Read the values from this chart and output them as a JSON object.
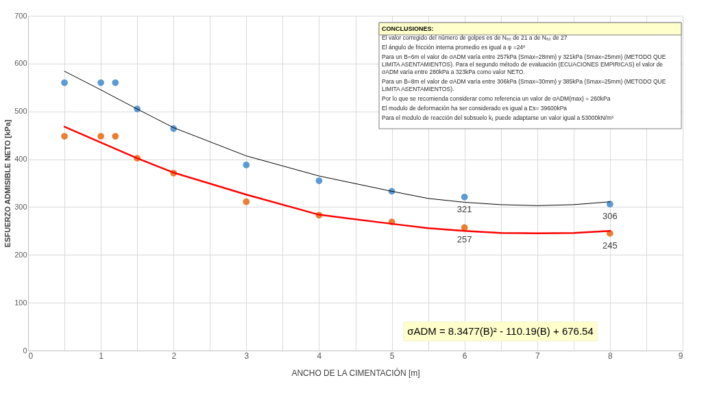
{
  "chart_data": {
    "type": "scatter",
    "xlabel": "ANCHO DE LA CIMENTACIÓN [m]",
    "ylabel": "ESFUERZO ADMISIBLE NETO [kPa]",
    "xlim": [
      0,
      9
    ],
    "xticks": [
      0,
      {
        "value": 0.5,
        "label": null
      },
      1,
      {
        "value": 1.5,
        "label": null
      },
      2,
      {
        "value": 2.5,
        "label": null
      },
      3,
      {
        "value": 3.5,
        "label": null
      },
      4,
      {
        "value": 4.5,
        "label": null
      },
      5,
      {
        "value": 5.5,
        "label": null
      },
      6,
      {
        "value": 6.5,
        "label": null
      },
      7,
      {
        "value": 7.5,
        "label": null
      },
      8,
      {
        "value": 8.5,
        "label": null
      },
      9
    ],
    "ylim": [
      0,
      700
    ],
    "yticks": [
      0,
      100,
      200,
      300,
      400,
      500,
      600,
      700
    ],
    "grid": true,
    "marker": "circle",
    "series": [
      {
        "color": "#5b9bd5",
        "x": [
          0.5,
          1,
          1.2,
          1.5,
          2,
          3,
          4,
          5,
          6,
          8
        ],
        "values": [
          560,
          560,
          560,
          505,
          464,
          388,
          355,
          333,
          321,
          306
        ],
        "value_labels": [
          null,
          null,
          null,
          null,
          null,
          null,
          null,
          null,
          "321",
          "306"
        ]
      },
      {
        "color": "#ed7d31",
        "x": [
          0.5,
          1,
          1.2,
          1.5,
          2,
          3,
          4,
          5,
          6,
          8
        ],
        "values": [
          448,
          448,
          448,
          402,
          371,
          311,
          283,
          269,
          257,
          245
        ],
        "value_labels": [
          null,
          null,
          null,
          null,
          null,
          null,
          null,
          null,
          "257",
          "245"
        ]
      },
      {
        "type": "line",
        "marker": "none",
        "color": "#000000",
        "x": [
          0.5,
          1,
          1.5,
          2,
          3,
          4,
          5,
          5.5,
          6,
          6.5,
          7,
          7.5,
          8
        ],
        "values": [
          584,
          545,
          505,
          466,
          407,
          365,
          333,
          318,
          310,
          305,
          303,
          305,
          311
        ]
      },
      {
        "type": "line",
        "marker": "none",
        "color": "#ff0000",
        "x": [
          0.5,
          1,
          1.5,
          2,
          3,
          4,
          5,
          5.5,
          6,
          6.5,
          7,
          7.5,
          8
        ],
        "values": [
          468,
          435,
          402,
          372,
          326,
          284,
          265,
          256,
          250,
          246,
          245,
          246,
          250
        ]
      }
    ],
    "annotations": [
      "CONCLUSIONES:",
      "El valor corregido del número de golpes es de N₆₀ de 21 a de N₆₀ de 27",
      "El ángulo de fricción interna promedio es igual a φ =24º",
      "Para un B=6m el valor de σADM varía entre 257kPa (Smax=28mm) y 321kPa (Smax=25mm) (METODO QUE LIMITA ASENTAMIENTOS). Para el segundo método de evaluación (ECUACIONES EMPIRICAS) el valor de σADM varía entre 280kPa a 323kPa como valor NETO.",
      "Para un B=8m el valor de σADM varía entre 306kPa (Smax=30mm) y 385kPa (Smax=25mm) (METODO QUE LIMITA ASENTAMIENTOS).",
      "Por lo que se recomienda considerar como referencia un valor de σADM(max) = 260kPa",
      "El modulo de deformación ha ser considerado es igual a Es= 39600kPa",
      "Para el modulo de reacción del subsuelo k₁ puede adaptarse un valor igual a 53000kN/m³",
      "σADM = 8.3477(B)² - 110.19(B) + 676.54"
    ]
  }
}
